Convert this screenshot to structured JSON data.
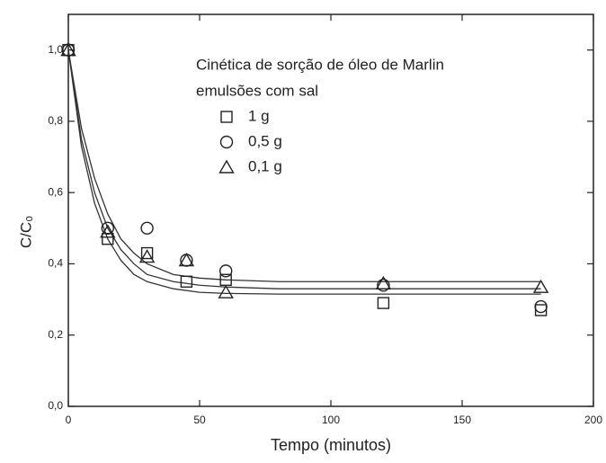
{
  "chart_data": {
    "type": "scatter",
    "legend_title": [
      "Cinética de sorção de óleo de Marlin",
      "emulsões com sal"
    ],
    "x_label": "Tempo (minutos)",
    "y_label": "C/C₀",
    "x": [
      0,
      15,
      30,
      45,
      60,
      120,
      180
    ],
    "series": [
      {
        "name": "1 g",
        "marker": "square",
        "color": "#222222",
        "values": [
          1.0,
          0.47,
          0.43,
          0.35,
          0.355,
          0.29,
          0.27
        ]
      },
      {
        "name": "0,5 g",
        "marker": "circle",
        "color": "#222222",
        "values": [
          1.0,
          0.5,
          0.5,
          0.41,
          0.38,
          0.34,
          0.28
        ]
      },
      {
        "name": "0,1 g",
        "marker": "triangle",
        "color": "#222222",
        "values": [
          1.0,
          0.49,
          0.42,
          0.41,
          0.32,
          0.345,
          0.335
        ]
      }
    ],
    "fits": [
      {
        "color": "#333333",
        "x": [
          0,
          5,
          10,
          15,
          20,
          25,
          30,
          40,
          50,
          60,
          80,
          100,
          150,
          180
        ],
        "values": [
          1.0,
          0.73,
          0.57,
          0.47,
          0.41,
          0.37,
          0.35,
          0.33,
          0.32,
          0.317,
          0.315,
          0.315,
          0.315,
          0.315
        ]
      },
      {
        "color": "#333333",
        "x": [
          0,
          5,
          10,
          15,
          20,
          25,
          30,
          40,
          50,
          60,
          80,
          100,
          150,
          180
        ],
        "values": [
          1.0,
          0.78,
          0.64,
          0.54,
          0.47,
          0.43,
          0.4,
          0.37,
          0.36,
          0.355,
          0.35,
          0.35,
          0.35,
          0.35
        ]
      },
      {
        "color": "#333333",
        "x": [
          0,
          5,
          10,
          15,
          20,
          25,
          30,
          40,
          50,
          60,
          80,
          100,
          150,
          180
        ],
        "values": [
          1.0,
          0.75,
          0.6,
          0.5,
          0.44,
          0.4,
          0.37,
          0.35,
          0.34,
          0.335,
          0.33,
          0.33,
          0.33,
          0.33
        ]
      }
    ],
    "xlim": [
      0,
      200
    ],
    "xticks": [
      0,
      50,
      100,
      150,
      200
    ],
    "ylim": [
      0,
      1.1
    ],
    "yticks": [
      {
        "value": 0,
        "label": "0,0"
      },
      {
        "value": 0.2,
        "label": "0,2"
      },
      {
        "value": 0.4,
        "label": "0,4"
      },
      {
        "value": 0.6,
        "label": "0,6"
      },
      {
        "value": 0.8,
        "label": "0,8"
      },
      {
        "value": 1.0,
        "label": "1,0"
      }
    ]
  }
}
